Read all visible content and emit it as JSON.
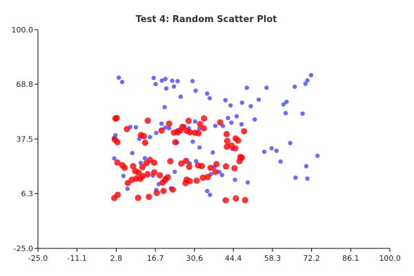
{
  "chart_data": {
    "type": "scatter",
    "title": "Test 4: Random Scatter Plot",
    "xlabel": "",
    "ylabel": "",
    "xlim": [
      -25.0,
      100.0
    ],
    "ylim": [
      -25.0,
      100.0
    ],
    "x_ticks": [
      -25.0,
      -11.1,
      2.8,
      16.7,
      30.6,
      44.4,
      58.3,
      72.2,
      86.1,
      100.0
    ],
    "x_tick_labels": [
      "-25.0",
      "-11.1",
      "2.8",
      "16.7",
      "30.6",
      "44.4",
      "58.3",
      "72.2",
      "86.1",
      "100.0"
    ],
    "y_ticks": [
      -25.0,
      6.3,
      37.5,
      68.8,
      100.0
    ],
    "y_tick_labels": [
      "-25.0",
      "6.3",
      "37.5",
      "68.8",
      "100.0"
    ],
    "grid": false,
    "legend": "none",
    "series": [
      {
        "color": "#3333ff",
        "marker_size": "small",
        "points": [
          [
            3.7,
            72.6
          ],
          [
            4.9,
            70.1
          ],
          [
            16.1,
            72.4
          ],
          [
            16.8,
            68.9
          ],
          [
            19.0,
            70.9
          ],
          [
            20.3,
            71.8
          ],
          [
            20.6,
            66.4
          ],
          [
            22.7,
            70.8
          ],
          [
            23.3,
            67.5
          ],
          [
            24.6,
            70.6
          ],
          [
            29.9,
            70.6
          ],
          [
            31.0,
            65.1
          ],
          [
            20.0,
            55.7
          ],
          [
            25.7,
            61.7
          ],
          [
            35.1,
            63.5
          ],
          [
            36.0,
            60.8
          ],
          [
            41.6,
            59.7
          ],
          [
            43.4,
            56.7
          ],
          [
            47.5,
            58.3
          ],
          [
            49.2,
            66.8
          ],
          [
            50.6,
            56.3
          ],
          [
            53.4,
            60.0
          ],
          [
            56.2,
            66.8
          ],
          [
            62.2,
            57.3
          ],
          [
            63.3,
            58.8
          ],
          [
            66.2,
            67.4
          ],
          [
            70.0,
            69.1
          ],
          [
            72.0,
            74.0
          ],
          [
            70.7,
            71.0
          ],
          [
            63.0,
            52.3
          ],
          [
            69.0,
            52.0
          ],
          [
            52.0,
            48.7
          ],
          [
            47.3,
            45.9
          ],
          [
            43.7,
            46.9
          ],
          [
            42.5,
            49.5
          ],
          [
            45.6,
            50.5
          ],
          [
            40.7,
            45.0
          ],
          [
            38.0,
            45.0
          ],
          [
            32.3,
            43.5
          ],
          [
            30.8,
            47.5
          ],
          [
            28.6,
            43.6
          ],
          [
            27.0,
            44.7
          ],
          [
            24.5,
            42.5
          ],
          [
            21.6,
            43.7
          ],
          [
            20.2,
            44.1
          ],
          [
            18.9,
            46.3
          ],
          [
            17.0,
            41.0
          ],
          [
            14.8,
            38.6
          ],
          [
            11.0,
            37.6
          ],
          [
            9.8,
            44.2
          ],
          [
            7.8,
            44.4
          ],
          [
            2.5,
            39.7
          ],
          [
            2.0,
            38.1
          ],
          [
            8.5,
            29.5
          ],
          [
            13.0,
            26.5
          ],
          [
            11.5,
            23.8
          ],
          [
            2.1,
            26.4
          ],
          [
            5.4,
            16.4
          ],
          [
            15.8,
            16.6
          ],
          [
            17.9,
            11.7
          ],
          [
            20.3,
            15.3
          ],
          [
            23.6,
            18.8
          ],
          [
            28.9,
            23.5
          ],
          [
            31.2,
            24.8
          ],
          [
            36.4,
            17.4
          ],
          [
            37.6,
            21.5
          ],
          [
            39.4,
            18.7
          ],
          [
            40.4,
            16.9
          ],
          [
            45.0,
            14.2
          ],
          [
            49.5,
            12.7
          ],
          [
            55.4,
            30.2
          ],
          [
            58.0,
            32.2
          ],
          [
            59.7,
            30.8
          ],
          [
            61.2,
            24.6
          ],
          [
            64.6,
            35.2
          ],
          [
            70.3,
            22.0
          ],
          [
            74.3,
            27.9
          ],
          [
            70.7,
            14.9
          ],
          [
            66.5,
            15.4
          ],
          [
            44.0,
            31.9
          ],
          [
            32.4,
            32.7
          ],
          [
            37.1,
            29.8
          ],
          [
            24.4,
            35.6
          ],
          [
            30.0,
            36.0
          ],
          [
            6.8,
            9.1
          ],
          [
            17.0,
            8.4
          ],
          [
            22.2,
            9.3
          ],
          [
            35.1,
            7.8
          ],
          [
            36.1,
            5.6
          ]
        ]
      },
      {
        "color": "#ff0000",
        "marker_size": "large",
        "points": [
          [
            2.5,
            49.3
          ],
          [
            3.0,
            49.5
          ],
          [
            6.6,
            43.2
          ],
          [
            11.6,
            39.8
          ],
          [
            13.1,
            35.4
          ],
          [
            14.0,
            48.0
          ],
          [
            18.9,
            42.4
          ],
          [
            21.6,
            46.3
          ],
          [
            23.3,
            41.2
          ],
          [
            24.6,
            41.3
          ],
          [
            25.5,
            42.3
          ],
          [
            26.3,
            44.4
          ],
          [
            27.8,
            42.2
          ],
          [
            28.5,
            47.9
          ],
          [
            29.0,
            41.4
          ],
          [
            30.8,
            41.1
          ],
          [
            32.6,
            46.1
          ],
          [
            34.0,
            49.3
          ],
          [
            33.9,
            43.6
          ],
          [
            32.0,
            40.8
          ],
          [
            39.7,
            47.0
          ],
          [
            42.0,
            40.3
          ],
          [
            45.2,
            37.8
          ],
          [
            48.2,
            41.9
          ],
          [
            42.2,
            36.4
          ],
          [
            43.7,
            33.8
          ],
          [
            46.1,
            36.6
          ],
          [
            42.1,
            33.1
          ],
          [
            45.1,
            32.2
          ],
          [
            23.8,
            35.7
          ],
          [
            12.6,
            39.1
          ],
          [
            2.3,
            37.2
          ],
          [
            3.2,
            35.7
          ],
          [
            3.2,
            24.1
          ],
          [
            5.0,
            22.5
          ],
          [
            5.8,
            21.1
          ],
          [
            8.8,
            22.0
          ],
          [
            9.5,
            19.2
          ],
          [
            12.1,
            21.4
          ],
          [
            13.5,
            23.7
          ],
          [
            14.8,
            25.6
          ],
          [
            16.3,
            24.0
          ],
          [
            22.0,
            24.8
          ],
          [
            25.9,
            23.5
          ],
          [
            27.6,
            25.0
          ],
          [
            28.7,
            21.6
          ],
          [
            31.9,
            22.4
          ],
          [
            33.2,
            22.1
          ],
          [
            36.3,
            21.0
          ],
          [
            38.0,
            18.7
          ],
          [
            38.4,
            23.2
          ],
          [
            41.8,
            21.9
          ],
          [
            44.8,
            20.8
          ],
          [
            46.6,
            24.9
          ],
          [
            47.4,
            26.8
          ],
          [
            46.9,
            27.3
          ],
          [
            6.9,
            12.4
          ],
          [
            8.3,
            14.2
          ],
          [
            9.9,
            14.9
          ],
          [
            11.4,
            14.8
          ],
          [
            12.2,
            16.3
          ],
          [
            10.7,
            18.2
          ],
          [
            14.0,
            17.4
          ],
          [
            16.3,
            18.4
          ],
          [
            18.3,
            16.8
          ],
          [
            19.3,
            12.6
          ],
          [
            20.2,
            14.1
          ],
          [
            21.1,
            15.6
          ],
          [
            27.4,
            12.3
          ],
          [
            27.8,
            14.3
          ],
          [
            28.9,
            13.5
          ],
          [
            31.4,
            13.7
          ],
          [
            33.6,
            15.4
          ],
          [
            35.3,
            15.8
          ],
          [
            2.1,
            3.8
          ],
          [
            3.3,
            5.6
          ],
          [
            10.6,
            3.9
          ],
          [
            14.4,
            4.4
          ],
          [
            17.2,
            6.7
          ],
          [
            19.6,
            7.8
          ],
          [
            22.9,
            8.6
          ],
          [
            41.7,
            2.5
          ],
          [
            45.3,
            3.6
          ],
          [
            48.6,
            2.6
          ]
        ]
      }
    ]
  }
}
